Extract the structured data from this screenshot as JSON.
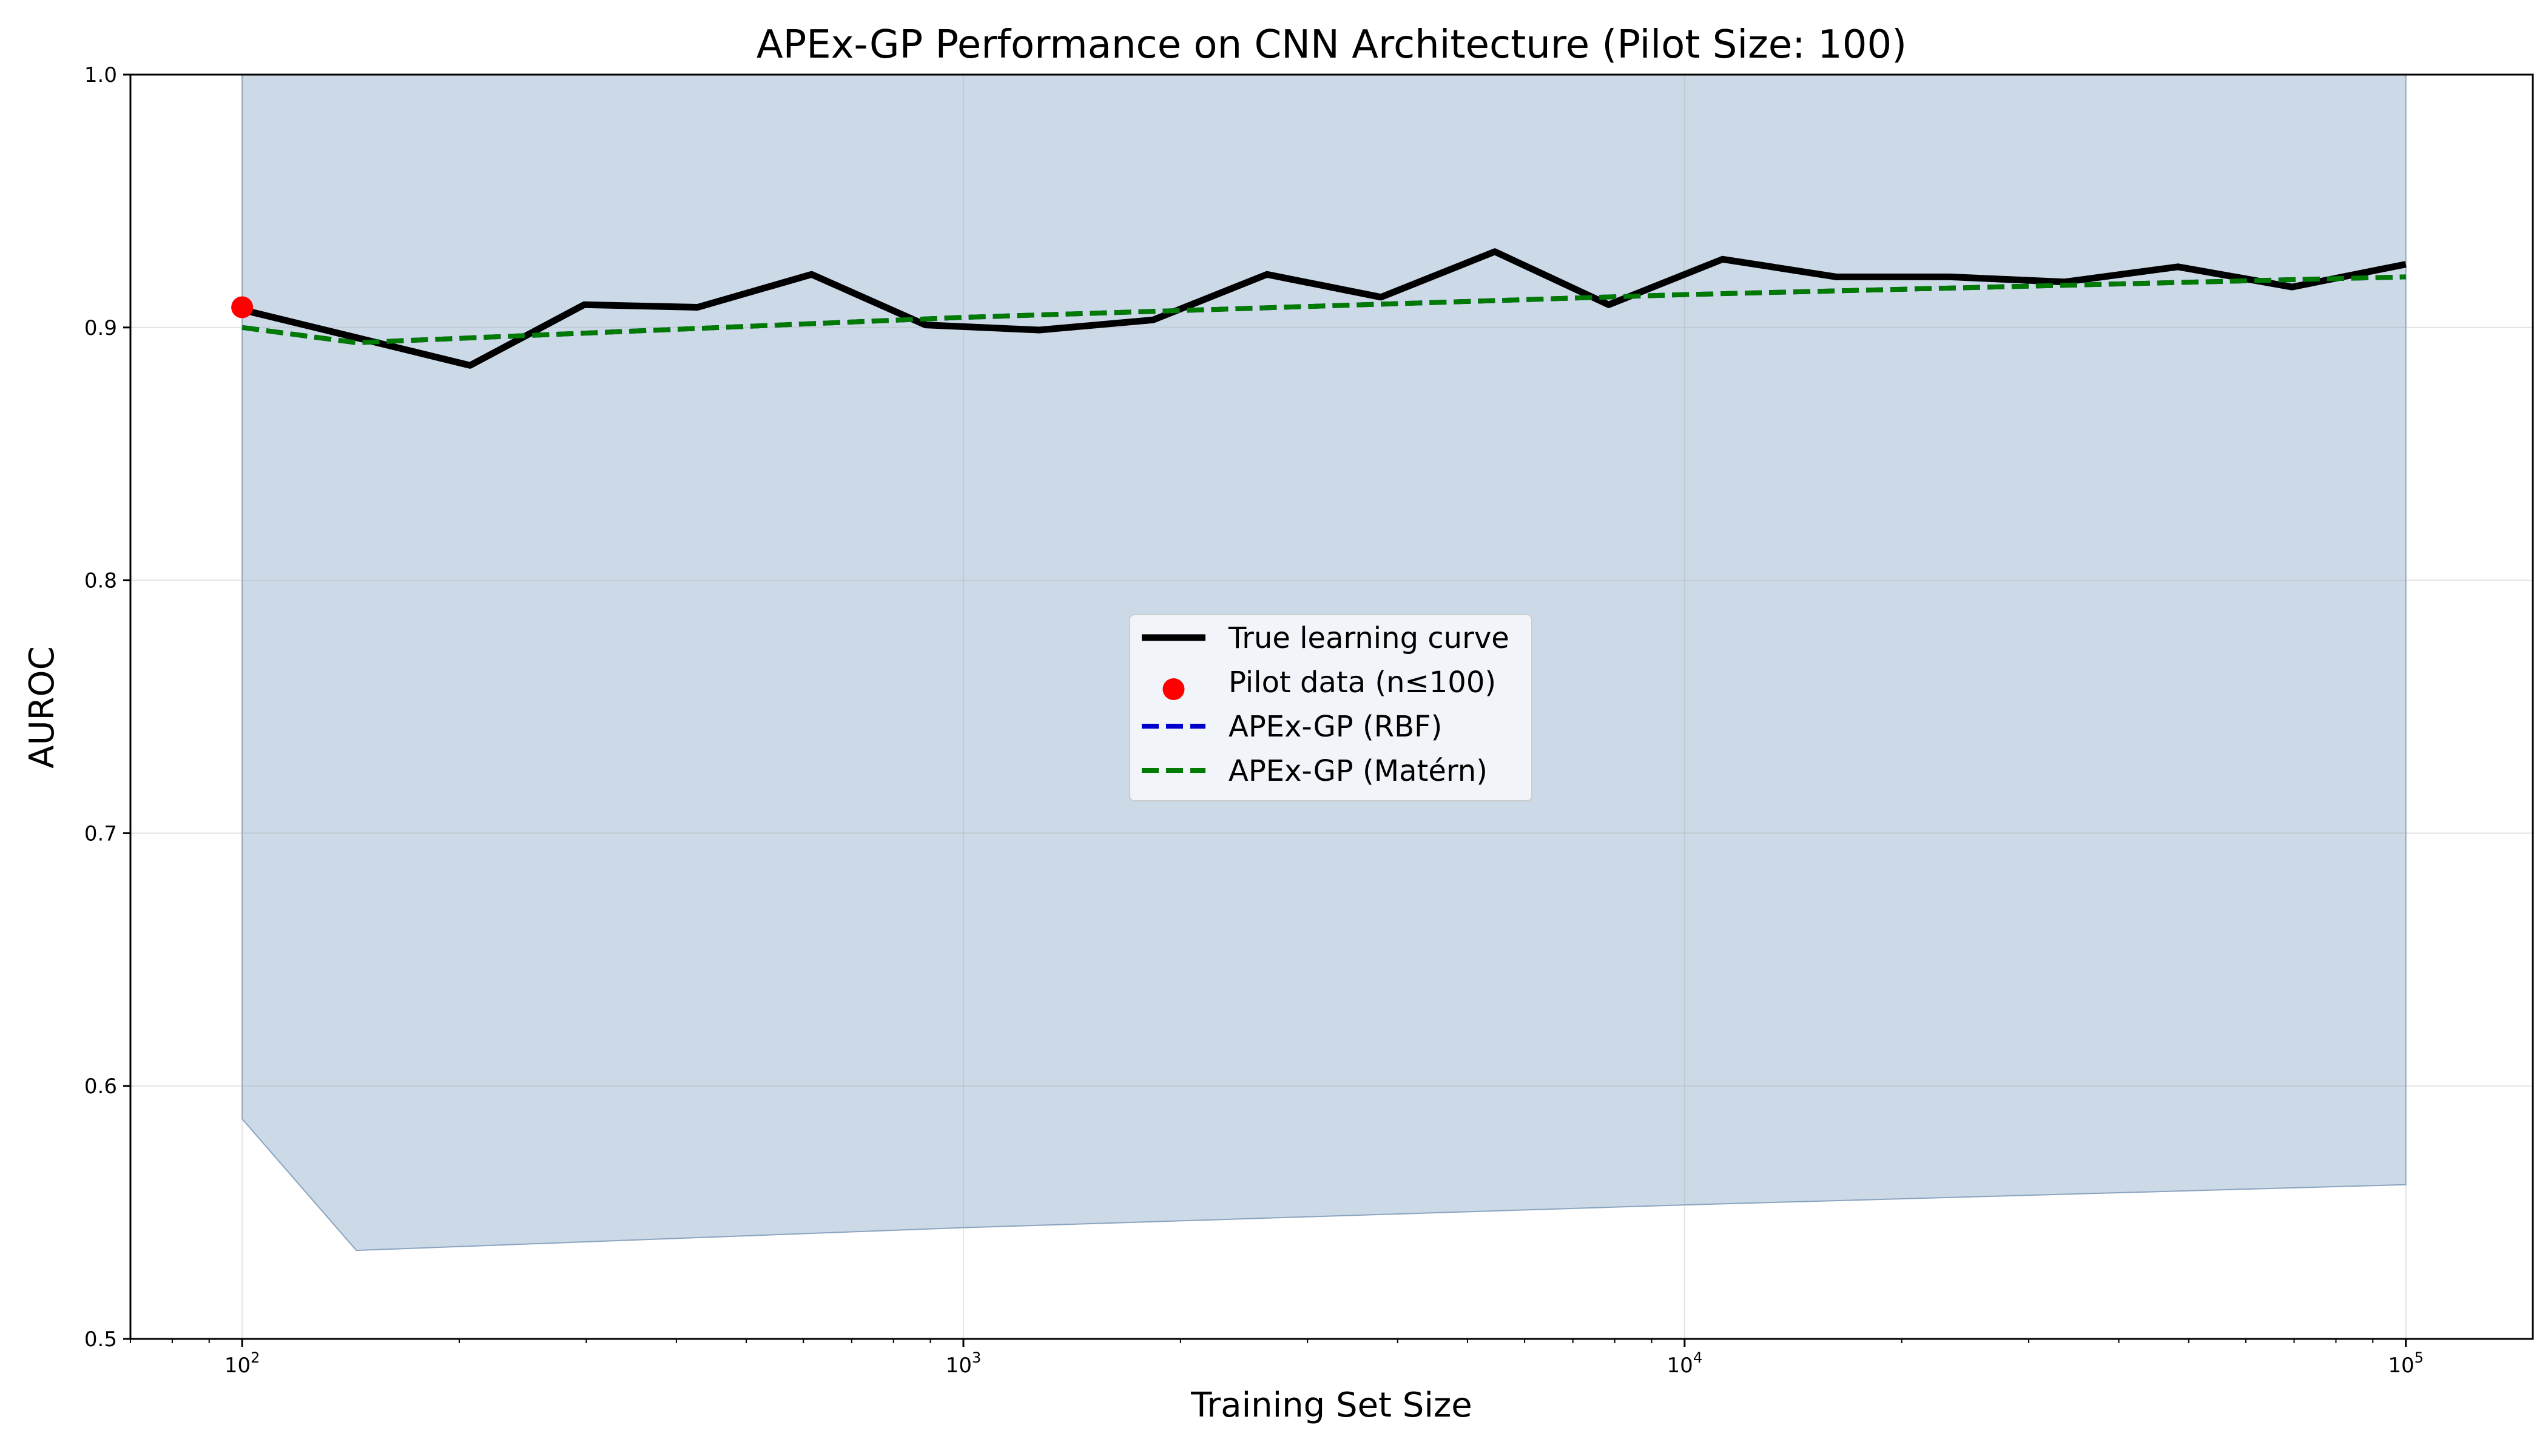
{
  "chart_data": {
    "type": "line",
    "title": "APEx-GP Performance on CNN Architecture (Pilot Size: 100)",
    "xlabel": "Training Set Size",
    "ylabel": "AUROC",
    "xscale": "log",
    "xlim": [
      70,
      150000
    ],
    "ylim": [
      0.5,
      1.0
    ],
    "grid": true,
    "legend_position": "center",
    "x_ticks": [
      {
        "value": 100,
        "base": "10",
        "exp": "2"
      },
      {
        "value": 1000,
        "base": "10",
        "exp": "3"
      },
      {
        "value": 10000,
        "base": "10",
        "exp": "4"
      },
      {
        "value": 100000,
        "base": "10",
        "exp": "5"
      }
    ],
    "y_ticks": [
      "0.5",
      "0.6",
      "0.7",
      "0.8",
      "0.9",
      "1.0"
    ],
    "series": [
      {
        "name": "True learning curve",
        "kind": "line",
        "color": "#000000",
        "x": [
          100,
          144,
          207,
          298,
          428,
          616,
          886,
          1274,
          1833,
          2636,
          3793,
          5456,
          7848,
          11288,
          16238,
          23357,
          33598,
          48329,
          69519,
          100000
        ],
        "y": [
          0.907,
          0.896,
          0.885,
          0.909,
          0.908,
          0.921,
          0.901,
          0.899,
          0.903,
          0.921,
          0.912,
          0.93,
          0.909,
          0.927,
          0.92,
          0.92,
          0.918,
          0.924,
          0.916,
          0.925
        ]
      },
      {
        "name": "Pilot data (n≤100)",
        "kind": "scatter",
        "color": "#ff0000",
        "x": [
          100
        ],
        "y": [
          0.908
        ]
      },
      {
        "name": "APEx-GP (RBF)",
        "kind": "line-dashed",
        "color": "#0000cc",
        "x": [
          100,
          144,
          1000,
          10000,
          100000
        ],
        "y": [
          0.9,
          0.894,
          0.904,
          0.913,
          0.92
        ]
      },
      {
        "name": "APEx-GP (Matérn)",
        "kind": "line-dashed",
        "color": "#007a00",
        "x": [
          100,
          144,
          1000,
          10000,
          100000
        ],
        "y": [
          0.9,
          0.894,
          0.904,
          0.913,
          0.92
        ]
      }
    ],
    "uncertainty_band": {
      "color": "#b0c4d8",
      "x": [
        100,
        144,
        1000,
        10000,
        100000
      ],
      "lower": [
        0.587,
        0.535,
        0.544,
        0.553,
        0.561
      ],
      "upper": [
        1.0,
        1.0,
        1.0,
        1.0,
        1.0
      ]
    }
  }
}
